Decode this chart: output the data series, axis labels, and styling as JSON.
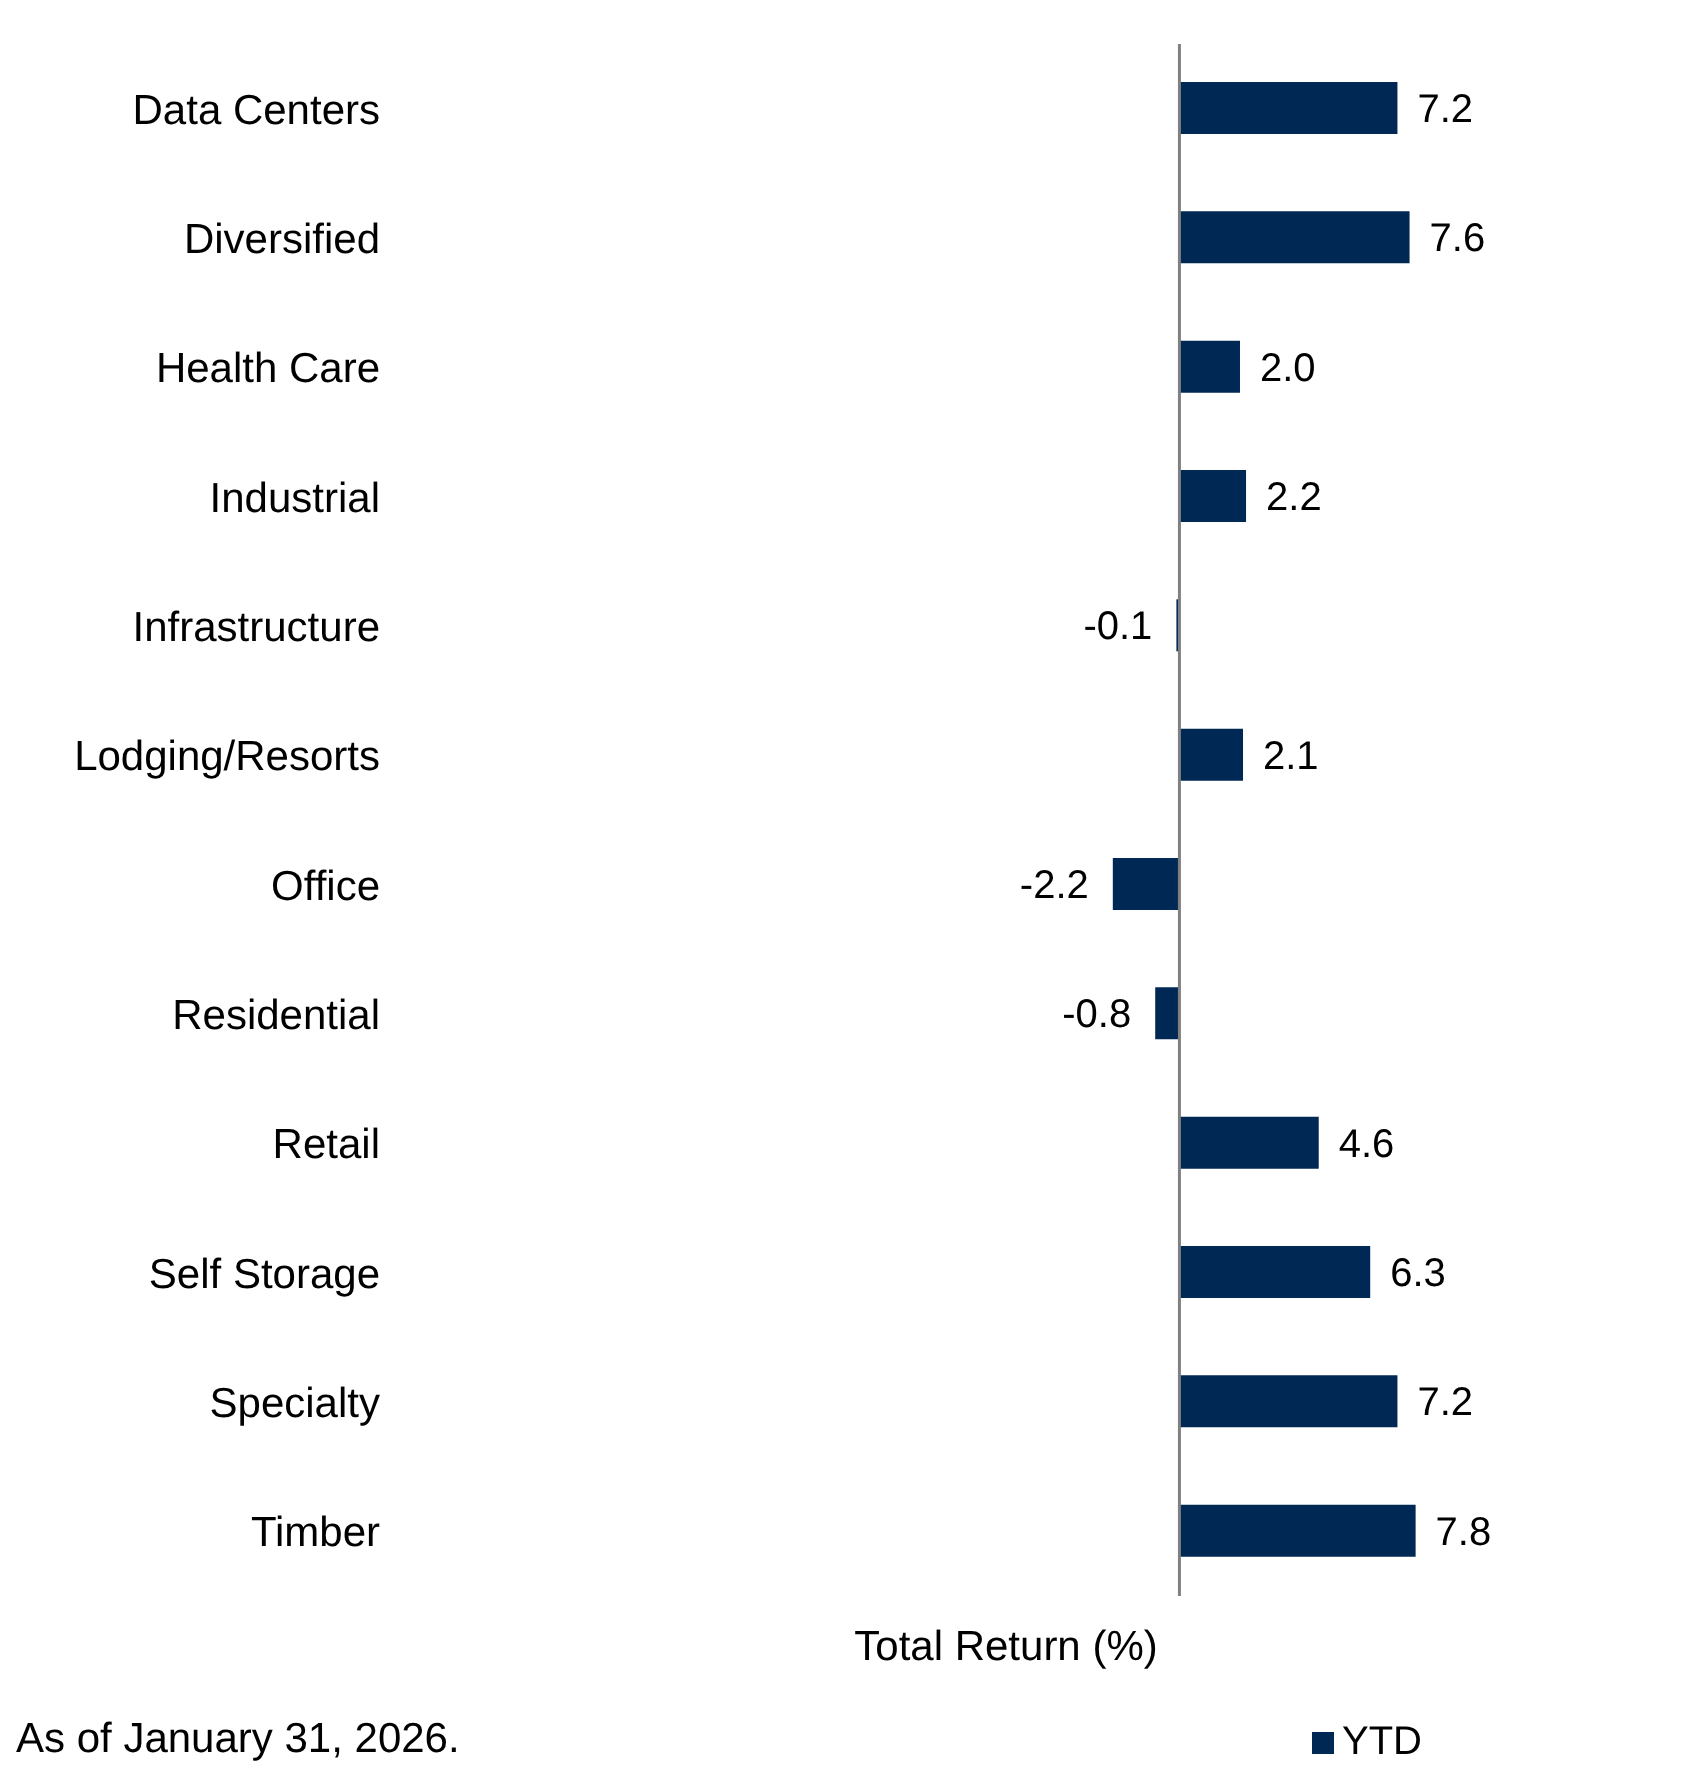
{
  "chart_data": {
    "type": "bar",
    "orientation": "horizontal",
    "xlabel": "Total Return (%)",
    "annotations": [
      "As of January 31, 2026."
    ],
    "categories": [
      "Data Centers",
      "Diversified",
      "Health Care",
      "Industrial",
      "Infrastructure",
      "Lodging/Resorts",
      "Office",
      "Residential",
      "Retail",
      "Self Storage",
      "Specialty",
      "Timber"
    ],
    "series": [
      {
        "name": "YTD",
        "color": "#002855",
        "values": [
          7.2,
          7.6,
          2.0,
          2.2,
          -0.1,
          2.1,
          -2.2,
          -0.8,
          4.6,
          6.3,
          7.2,
          7.8
        ],
        "value_labels": [
          "7.2",
          "7.6",
          "2.0",
          "2.2",
          "-0.1",
          "2.1",
          "-2.2",
          "-0.8",
          "4.6",
          "6.3",
          "7.2",
          "7.8"
        ]
      }
    ],
    "tick_labels": "y",
    "legend": "bottom right"
  }
}
